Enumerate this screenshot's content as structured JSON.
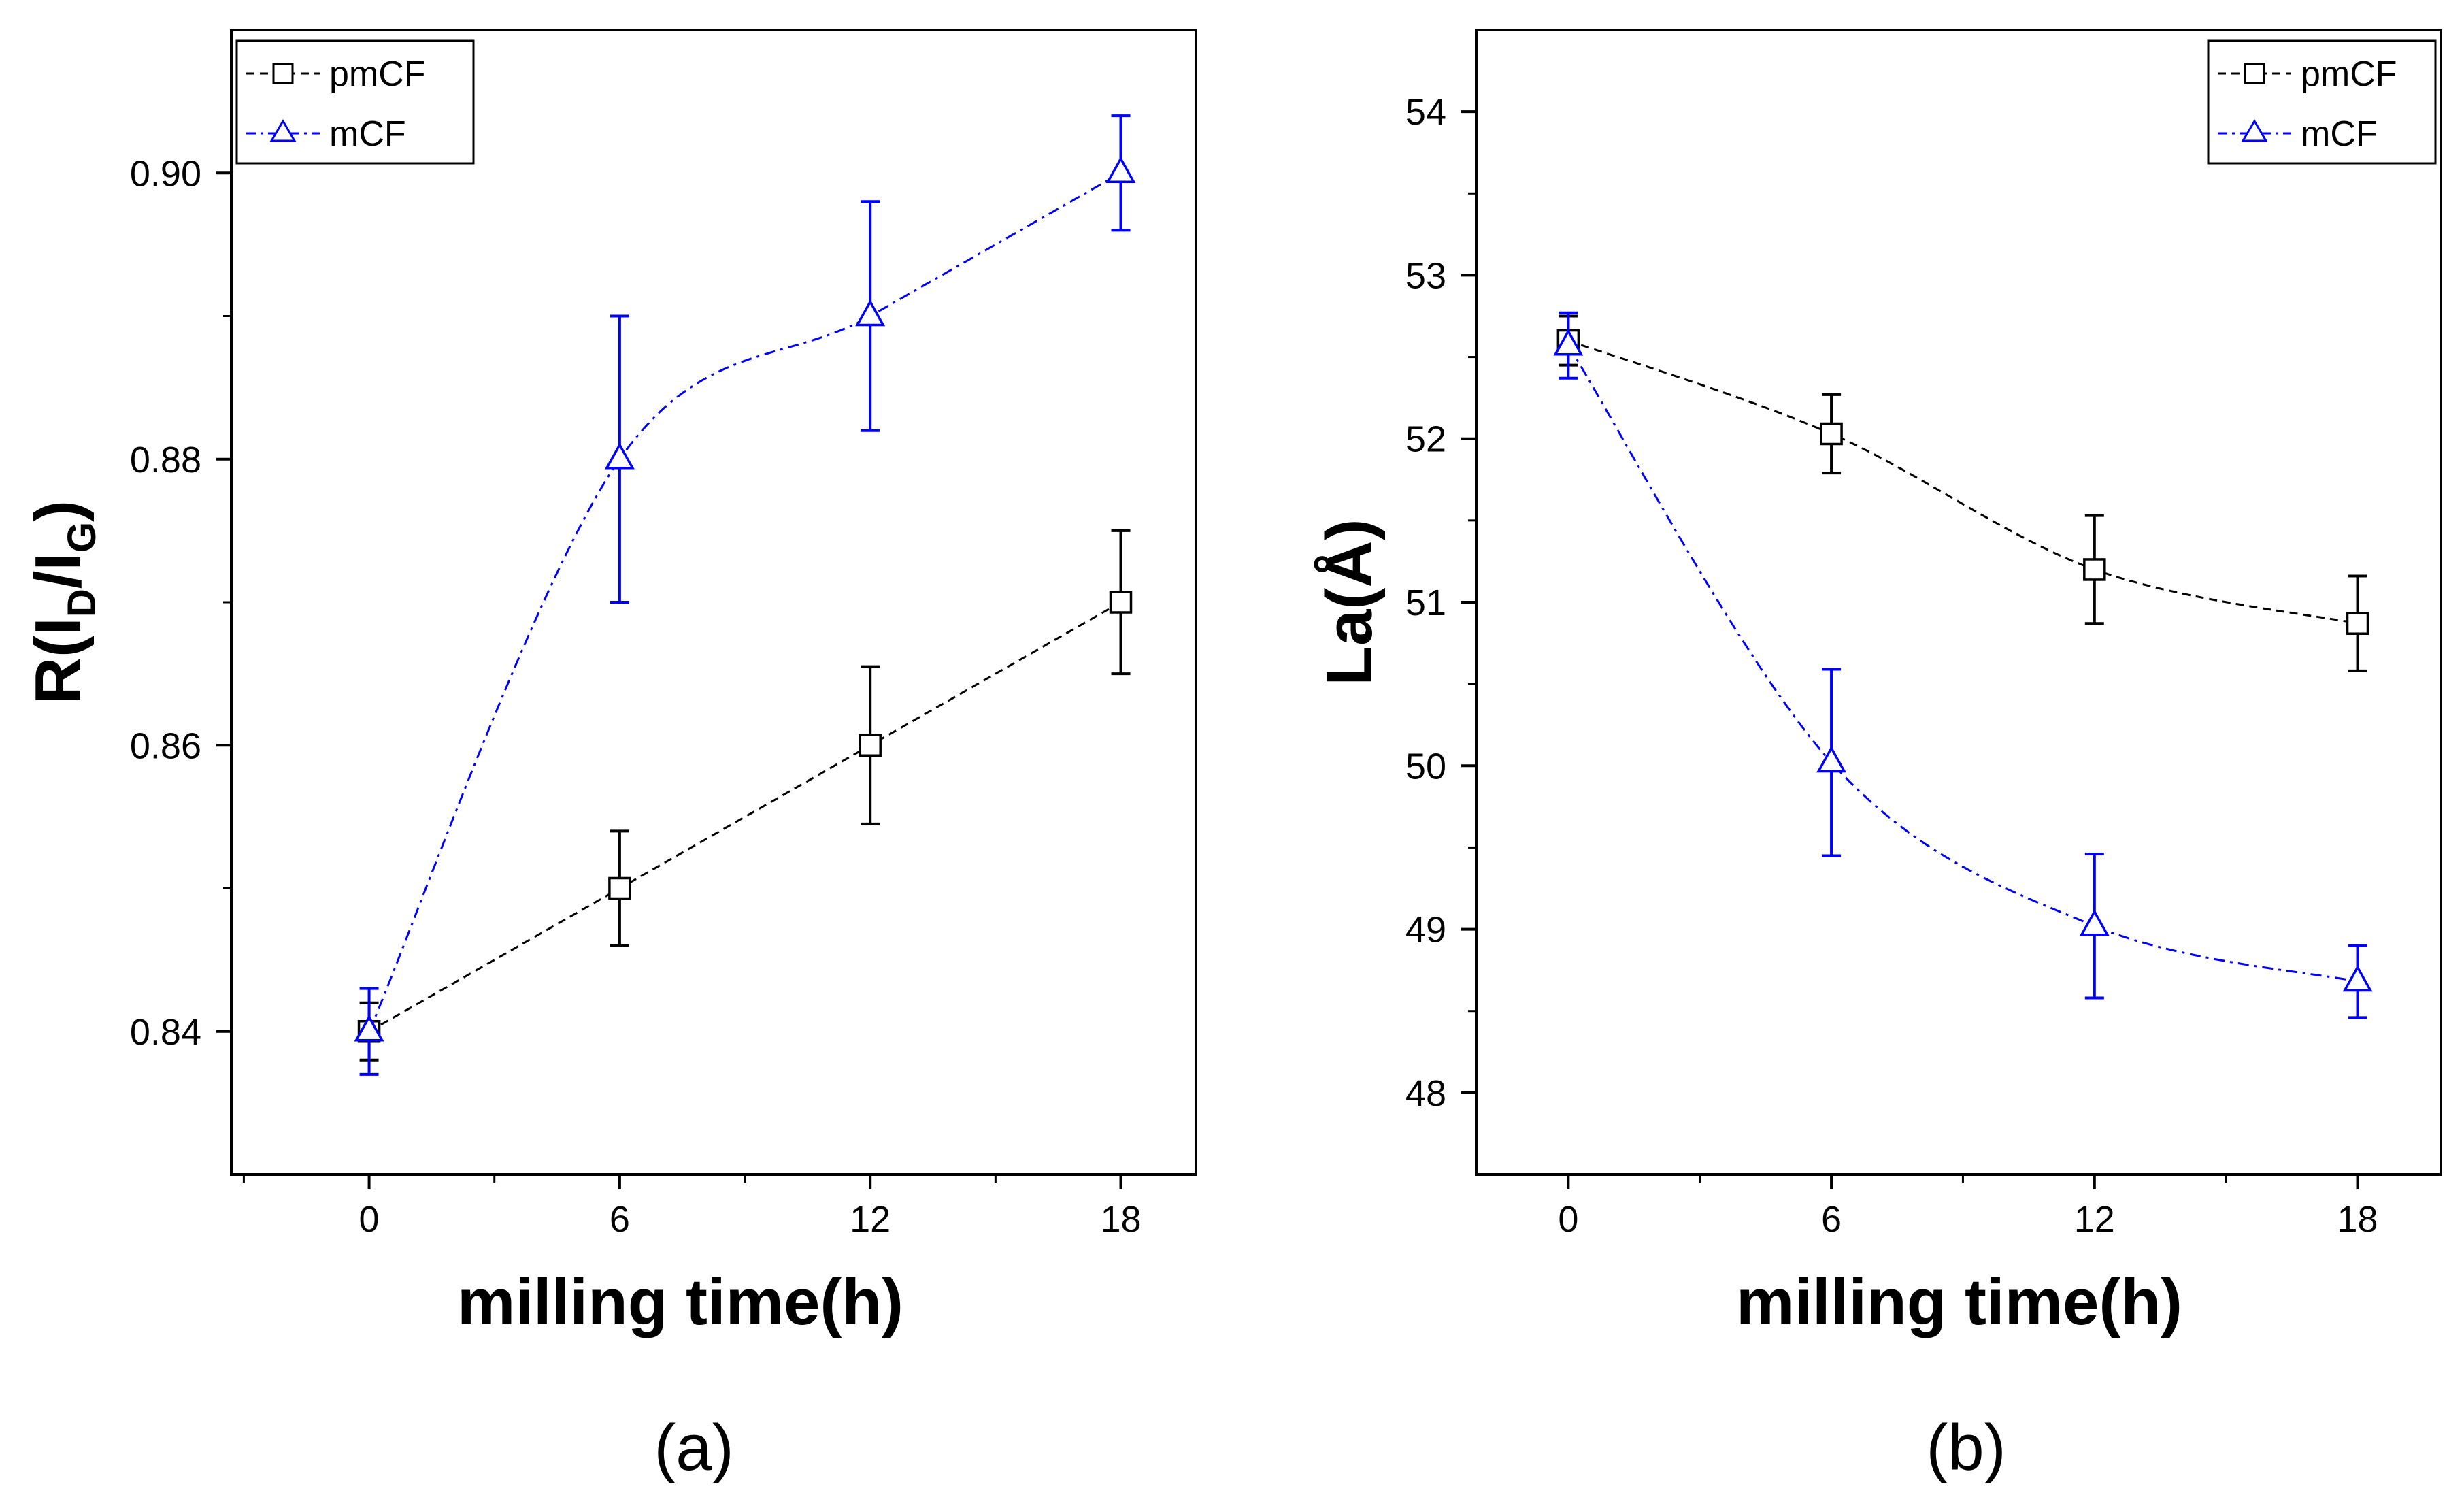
{
  "colors": {
    "pmCF": "#000000",
    "mCF": "#0000ff"
  },
  "markers": {
    "pmCF": "square",
    "mCF": "triangle"
  },
  "chart_data": [
    {
      "id": "a",
      "type": "line",
      "caption": "(a)",
      "xlabel": "milling time(h)",
      "ylabel_main": "R(I",
      "ylabel_sub1": "D",
      "ylabel_mid": "/I",
      "ylabel_sub2": "G",
      "ylabel_end": ")",
      "xlim": [
        -3.3,
        19.8
      ],
      "ylim": [
        0.83,
        0.91
      ],
      "xticks": [
        0,
        6,
        12,
        18
      ],
      "xtick_labels": [
        "0",
        "6",
        "12",
        "18"
      ],
      "yticks": [
        0.84,
        0.86,
        0.88,
        0.9
      ],
      "ytick_labels": [
        "0.84",
        "0.86",
        "0.88",
        "0.90"
      ],
      "legend_position": "top-left",
      "grid": false,
      "x": [
        0,
        6,
        12,
        18
      ],
      "series": [
        {
          "name": "pmCF",
          "values": [
            0.84,
            0.85,
            0.86,
            0.87
          ],
          "errors": [
            0.002,
            0.004,
            0.0055,
            0.005
          ]
        },
        {
          "name": "mCF",
          "values": [
            0.84,
            0.88,
            0.89,
            0.9
          ],
          "errors": [
            0.003,
            0.01,
            0.008,
            0.004
          ]
        }
      ]
    },
    {
      "id": "b",
      "type": "line",
      "caption": "(b)",
      "xlabel": "milling time(h)",
      "ylabel": "La(Å)",
      "xlim": [
        -2.1,
        19.9
      ],
      "ylim": [
        47.5,
        54.5
      ],
      "xticks": [
        0,
        6,
        12,
        18
      ],
      "xtick_labels": [
        "0",
        "6",
        "12",
        "18"
      ],
      "yticks": [
        48,
        49,
        50,
        51,
        52,
        53,
        54
      ],
      "ytick_labels": [
        "48",
        "49",
        "50",
        "51",
        "52",
        "53",
        "54"
      ],
      "legend_position": "top-right",
      "grid": false,
      "x": [
        0,
        6,
        12,
        18
      ],
      "series": [
        {
          "name": "pmCF",
          "values": [
            52.6,
            52.03,
            51.2,
            50.87
          ],
          "errors": [
            0.15,
            0.24,
            0.33,
            0.29
          ]
        },
        {
          "name": "mCF",
          "values": [
            52.57,
            50.02,
            49.02,
            48.68
          ],
          "errors": [
            0.2,
            0.57,
            0.44,
            0.22
          ]
        }
      ]
    }
  ]
}
